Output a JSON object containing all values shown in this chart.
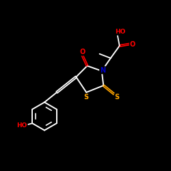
{
  "background_color": "#000000",
  "bond_color": "#ffffff",
  "atom_colors": {
    "O": "#ff0000",
    "N": "#0000cd",
    "S": "#ffa500",
    "C": "#ffffff",
    "H": "#ffffff"
  },
  "figsize": [
    2.5,
    2.5
  ],
  "dpi": 100
}
